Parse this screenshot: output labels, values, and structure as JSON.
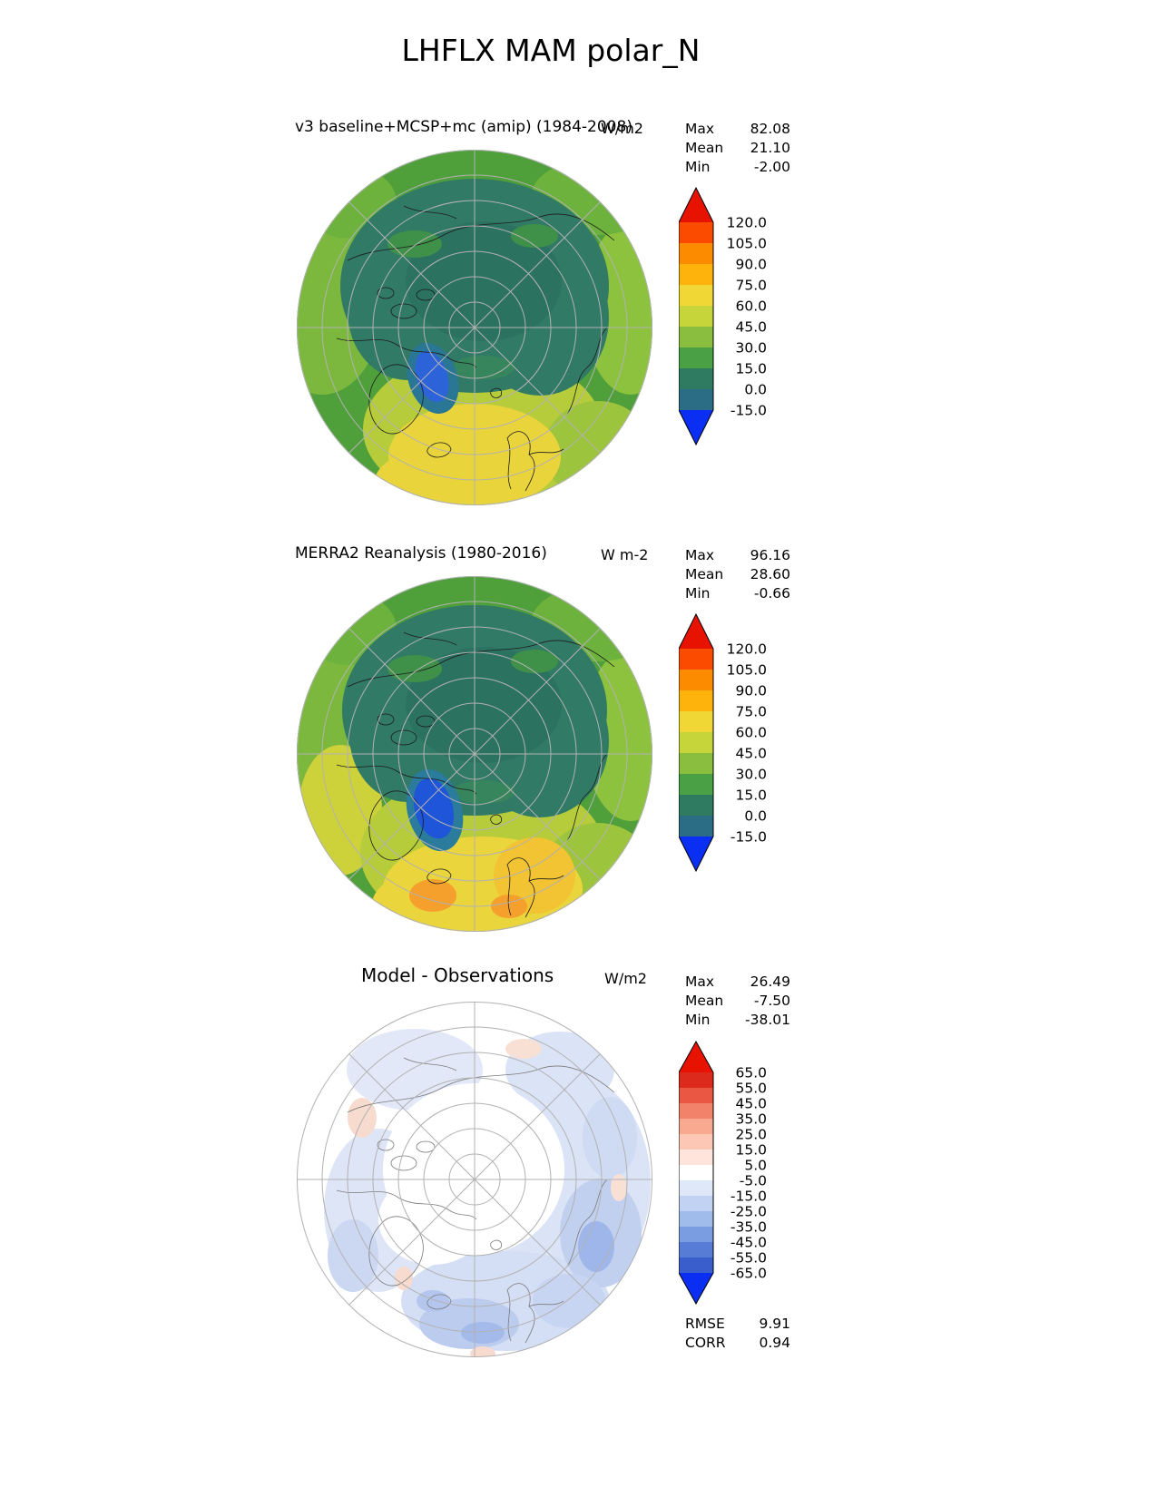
{
  "title": "LHFLX MAM polar_N",
  "panels": [
    {
      "subtitle": "v3 baseline+MCSP+mc (amip) (1984-2008)",
      "units": "W/m2",
      "stats": [
        {
          "label": "Max",
          "value": "82.08"
        },
        {
          "label": "Mean",
          "value": "21.10"
        },
        {
          "label": "Min",
          "value": "-2.00"
        }
      ],
      "colorbar": {
        "ticks": [
          "120.0",
          "105.0",
          "90.0",
          "75.0",
          "60.0",
          "45.0",
          "30.0",
          "15.0",
          "0.0",
          "-15.0"
        ],
        "segment_colors": [
          "#fb4b00",
          "#fd8b00",
          "#fdb30c",
          "#f0d735",
          "#c5d53a",
          "#8abe3e",
          "#4aa045",
          "#2f7b62",
          "#2b6d84"
        ],
        "arrow_top": "#e81200",
        "arrow_bottom": "#0a2ff2"
      }
    },
    {
      "subtitle": "MERRA2 Reanalysis (1980-2016)",
      "units": "W m-2",
      "stats": [
        {
          "label": "Max",
          "value": "96.16"
        },
        {
          "label": "Mean",
          "value": "28.60"
        },
        {
          "label": "Min",
          "value": "-0.66"
        }
      ],
      "colorbar": {
        "ticks": [
          "120.0",
          "105.0",
          "90.0",
          "75.0",
          "60.0",
          "45.0",
          "30.0",
          "15.0",
          "0.0",
          "-15.0"
        ],
        "segment_colors": [
          "#fb4b00",
          "#fd8b00",
          "#fdb30c",
          "#f0d735",
          "#c5d53a",
          "#8abe3e",
          "#4aa045",
          "#2f7b62",
          "#2b6d84"
        ],
        "arrow_top": "#e81200",
        "arrow_bottom": "#0a2ff2"
      }
    },
    {
      "subtitle": "Model - Observations",
      "units": "W/m2",
      "stats": [
        {
          "label": "Max",
          "value": "26.49"
        },
        {
          "label": "Mean",
          "value": "-7.50"
        },
        {
          "label": "Min",
          "value": "-38.01"
        }
      ],
      "colorbar": {
        "ticks": [
          "65.0",
          "55.0",
          "45.0",
          "35.0",
          "25.0",
          "15.0",
          "5.0",
          "-5.0",
          "-15.0",
          "-25.0",
          "-35.0",
          "-45.0",
          "-55.0",
          "-65.0"
        ],
        "segment_colors": [
          "#dc2a1d",
          "#ea5743",
          "#f3826a",
          "#f9a98f",
          "#fcc8b5",
          "#fee4da",
          "#ffffff",
          "#dfe8f8",
          "#c2d2f2",
          "#9fbceb",
          "#7a9ce1",
          "#567cd6",
          "#3a5ecb"
        ],
        "arrow_top": "#e81200",
        "arrow_bottom": "#0a2ff2"
      }
    }
  ],
  "footer": {
    "rows": [
      {
        "label": "RMSE",
        "value": "9.91"
      },
      {
        "label": "CORR",
        "value": "0.94"
      }
    ]
  },
  "chart_data": [
    {
      "type": "heatmap",
      "variable": "LHFLX",
      "season": "MAM",
      "region": "polar_N",
      "title": "v3 baseline+MCSP+mc (amip) (1984-2008)",
      "units": "W/m2",
      "stats": {
        "max": 82.08,
        "mean": 21.1,
        "min": -2.0
      },
      "levels": [
        -15,
        0,
        15,
        30,
        45,
        60,
        75,
        90,
        105,
        120
      ],
      "colormap": "blue-green-yellow-red, extend both"
    },
    {
      "type": "heatmap",
      "variable": "LHFLX",
      "season": "MAM",
      "region": "polar_N",
      "title": "MERRA2 Reanalysis (1980-2016)",
      "units": "W m-2",
      "stats": {
        "max": 96.16,
        "mean": 28.6,
        "min": -0.66
      },
      "levels": [
        -15,
        0,
        15,
        30,
        45,
        60,
        75,
        90,
        105,
        120
      ],
      "colormap": "blue-green-yellow-red, extend both"
    },
    {
      "type": "heatmap",
      "variable": "LHFLX",
      "season": "MAM",
      "region": "polar_N",
      "title": "Model - Observations",
      "units": "W/m2",
      "stats": {
        "max": 26.49,
        "mean": -7.5,
        "min": -38.01
      },
      "levels": [
        -65,
        -55,
        -45,
        -35,
        -25,
        -15,
        -5,
        5,
        15,
        25,
        35,
        45,
        55,
        65
      ],
      "rmse": 9.91,
      "corr": 0.94,
      "colormap": "red-white-blue diverging, extend both"
    }
  ]
}
